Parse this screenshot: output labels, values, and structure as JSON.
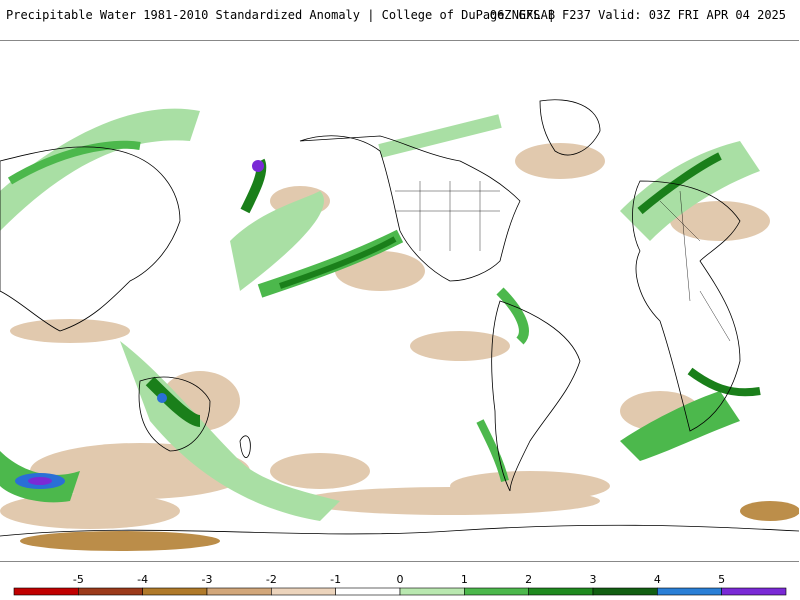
{
  "header": {
    "title_left": "Precipitable Water 1981-2010 Standardized Anomaly | College of DuPage NEXLAB",
    "title_right": "06Z GFS | F237 Valid: 03Z FRI APR 04 2025"
  },
  "map": {
    "projection": "cylindrical equidistant global",
    "colors": {
      "land_outline": "#000000",
      "dry_anomaly": "#d9b38c",
      "moist_light": "#a9dfa4",
      "moist_mid": "#4cb84c",
      "moist_dark": "#1a7f1a",
      "moist_extreme": "#2a6fd6",
      "moist_max": "#7a2ad6"
    }
  },
  "colorbar": {
    "ticks": [
      "-5",
      "-4",
      "-3",
      "-2",
      "-1",
      "0",
      "1",
      "2",
      "3",
      "4",
      "5"
    ],
    "bins": [
      {
        "color": "#c00000"
      },
      {
        "color": "#9b3a1a"
      },
      {
        "color": "#b07a2a"
      },
      {
        "color": "#d2a77a"
      },
      {
        "color": "#ecd4bc"
      },
      {
        "color": "#ffffff"
      },
      {
        "color": "#b9e8b0"
      },
      {
        "color": "#4cb84c"
      },
      {
        "color": "#1f8a1f"
      },
      {
        "color": "#125f12"
      },
      {
        "color": "#2a7fd6"
      },
      {
        "color": "#7a2ad6"
      }
    ]
  }
}
